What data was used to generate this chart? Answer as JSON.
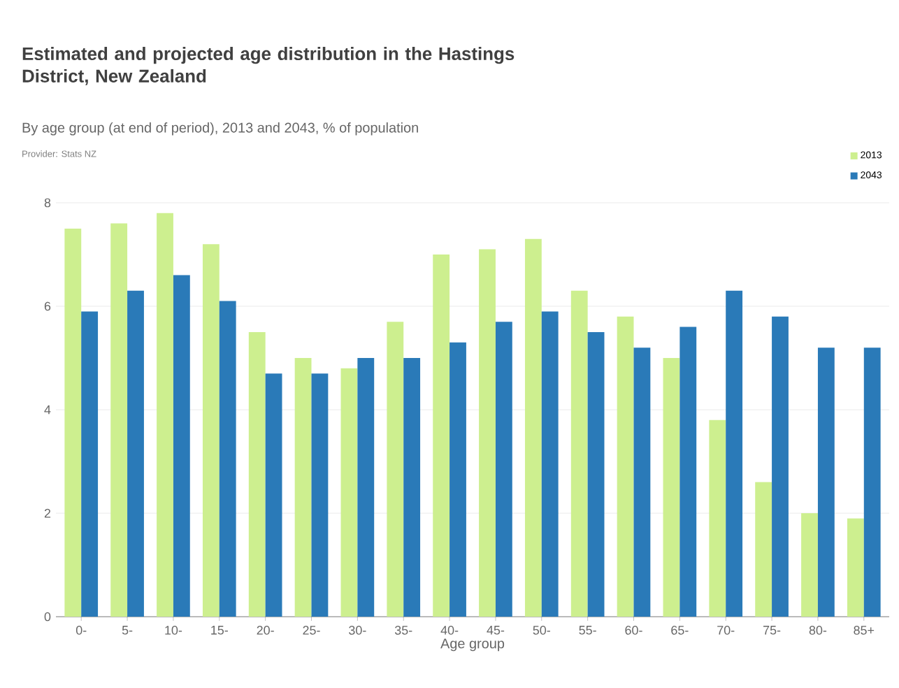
{
  "chart_data": {
    "type": "bar",
    "title": "Estimated and projected age distribution in the Hastings District, New Zealand",
    "subtitle": "By age group (at end of period), 2013 and 2043, % of population",
    "annotations": [
      "Provider: Stats NZ"
    ],
    "xlabel": "Age group",
    "categories": [
      "0-",
      "5-",
      "10-",
      "15-",
      "20-",
      "25-",
      "30-",
      "35-",
      "40-",
      "45-",
      "50-",
      "55-",
      "60-",
      "65-",
      "70-",
      "75-",
      "80-",
      "85+"
    ],
    "series": [
      {
        "name": "2013",
        "color": "#cdef8f",
        "values": [
          7.5,
          7.6,
          7.8,
          7.2,
          5.5,
          5.0,
          4.8,
          5.7,
          7.0,
          7.1,
          7.3,
          6.3,
          5.8,
          5.0,
          3.8,
          2.6,
          2.0,
          1.9
        ]
      },
      {
        "name": "2043",
        "color": "#2a7ab8",
        "values": [
          5.9,
          6.3,
          6.6,
          6.1,
          4.7,
          4.7,
          5.0,
          5.0,
          5.3,
          5.7,
          5.9,
          5.5,
          5.2,
          5.6,
          6.3,
          5.8,
          5.2,
          5.2
        ]
      }
    ],
    "ylim": [
      0,
      8
    ],
    "yticks": [
      0,
      2,
      4,
      6,
      8
    ],
    "grid": "y",
    "legend": "top right"
  }
}
